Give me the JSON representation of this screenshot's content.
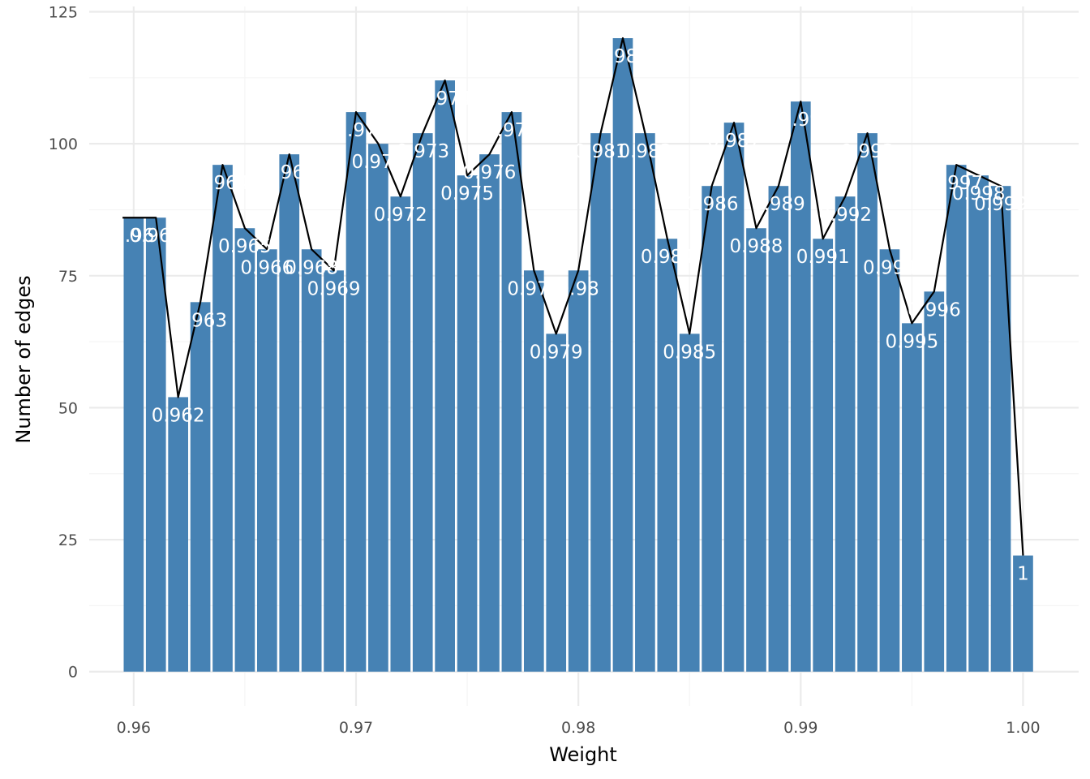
{
  "chart_data": {
    "type": "bar",
    "title": "",
    "xlabel": "Weight",
    "ylabel": "Number of edges",
    "x": [
      0.96,
      0.961,
      0.962,
      0.963,
      0.964,
      0.965,
      0.966,
      0.967,
      0.968,
      0.969,
      0.97,
      0.971,
      0.972,
      0.973,
      0.974,
      0.975,
      0.976,
      0.977,
      0.978,
      0.979,
      0.98,
      0.981,
      0.982,
      0.983,
      0.984,
      0.985,
      0.986,
      0.987,
      0.988,
      0.989,
      0.99,
      0.991,
      0.992,
      0.993,
      0.994,
      0.995,
      0.996,
      0.997,
      0.998,
      0.999,
      1.0
    ],
    "values": [
      86,
      86,
      52,
      70,
      96,
      84,
      80,
      98,
      80,
      76,
      106,
      100,
      90,
      102,
      112,
      94,
      98,
      106,
      76,
      64,
      76,
      102,
      120,
      102,
      82,
      64,
      92,
      104,
      84,
      92,
      108,
      82,
      90,
      102,
      80,
      66,
      72,
      96,
      94,
      92,
      22
    ],
    "bar_labels": [
      "0.96",
      "0.961",
      "0.962",
      "0.963",
      "0.964",
      "0.965",
      "0.966",
      "0.967",
      "0.968",
      "0.969",
      "0.97",
      "0.971",
      "0.972",
      "0.973",
      "0.974",
      "0.975",
      "0.976",
      "0.977",
      "0.978",
      "0.979",
      "0.98",
      "0.981",
      "0.982",
      "0.983",
      "0.984",
      "0.985",
      "0.986",
      "0.987",
      "0.988",
      "0.989",
      "0.99",
      "0.991",
      "0.992",
      "0.993",
      "0.994",
      "0.995",
      "0.996",
      "0.997",
      "0.998",
      "0.999",
      "1"
    ],
    "line_overlay": true,
    "xlim": [
      0.958,
      1.0025
    ],
    "ylim": [
      -6.5,
      126
    ],
    "xticks": [
      0.96,
      0.97,
      0.98,
      0.99,
      1.0
    ],
    "xtick_labels": [
      "0.96",
      "0.97",
      "0.98",
      "0.99",
      "1.00"
    ],
    "yticks": [
      0,
      25,
      50,
      75,
      100,
      125
    ],
    "ytick_labels": [
      "0",
      "25",
      "50",
      "75",
      "100",
      "125"
    ],
    "grid": true,
    "colors": {
      "bar": "#4682b4",
      "line": "#000000",
      "bar_label": "#ffffff",
      "grid_major": "#ebebeb",
      "grid_minor": "#f5f5f5"
    }
  }
}
